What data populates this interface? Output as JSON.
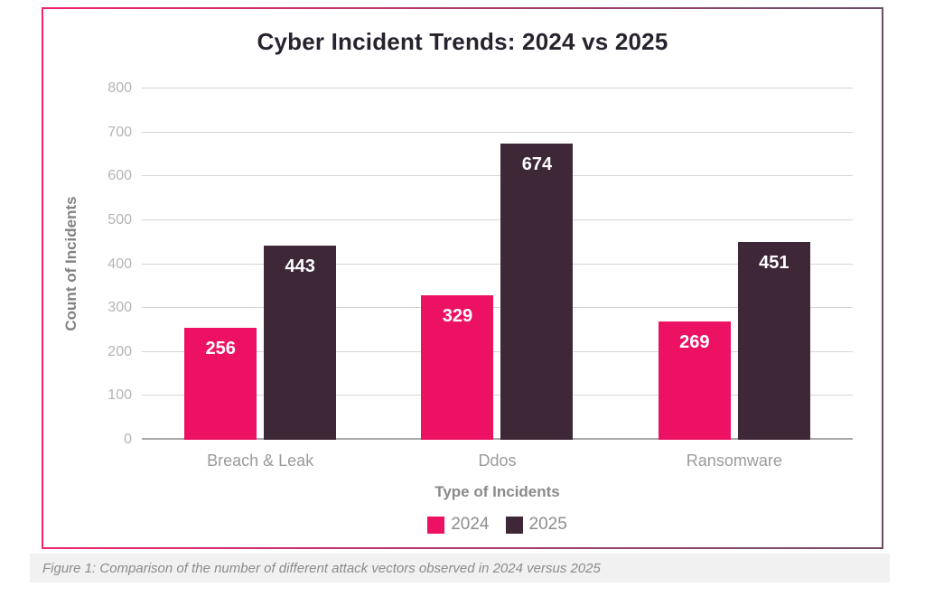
{
  "chart_data": {
    "type": "bar",
    "title": "Cyber Incident Trends: 2024 vs 2025",
    "xlabel": "Type of Incidents",
    "ylabel": "Count of Incidents",
    "categories": [
      "Breach & Leak",
      "Ddos",
      "Ransomware"
    ],
    "series": [
      {
        "name": "2024",
        "color": "#ed1164",
        "values": [
          256,
          329,
          269
        ]
      },
      {
        "name": "2025",
        "color": "#3e2737",
        "values": [
          443,
          674,
          451
        ]
      }
    ],
    "ylim": [
      0,
      800
    ],
    "yticks": [
      0,
      100,
      200,
      300,
      400,
      500,
      600,
      700,
      800
    ],
    "grid": true,
    "value_labels": true,
    "legend_position": "bottom"
  },
  "figure": {
    "caption": "Figure 1: Comparison of the number of different attack vectors observed in 2024 versus 2025"
  },
  "style": {
    "accent_pink": "#ed1164",
    "accent_purple": "#3e2737",
    "frame_border_left": "#f1236c",
    "frame_border_right": "#6e4f66",
    "grid_color": "#d5d5d5",
    "baseline_color": "#a8a8a8",
    "caption_bg": "#f1f1f2",
    "value_label_color": "#ffffff"
  }
}
